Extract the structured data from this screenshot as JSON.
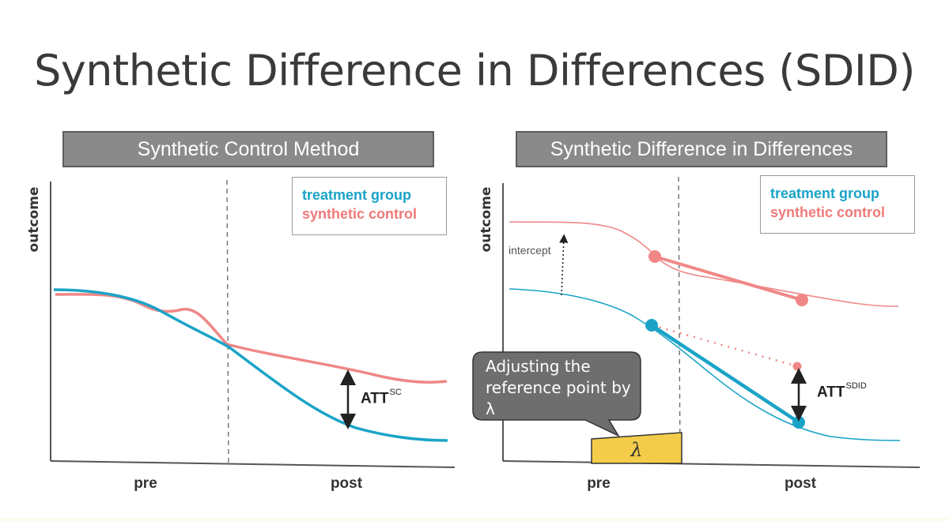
{
  "title": "Synthetic Difference in Differences (SDID)",
  "left_panel": {
    "header": "Synthetic Control Method",
    "ylabel": "outcome",
    "x_pre": "pre",
    "x_post": "post",
    "legend": {
      "treatment": "treatment group",
      "synthetic": "synthetic control"
    },
    "att_label": "ATT",
    "att_sup": "SC"
  },
  "right_panel": {
    "header": "Synthetic Difference in Differences",
    "ylabel": "outcome",
    "x_pre": "pre",
    "x_post": "post",
    "legend": {
      "treatment": "treatment group",
      "synthetic": "synthetic control"
    },
    "intercept_label": "intercept",
    "att_label": "ATT",
    "att_sup": "SDID",
    "callout": "Adjusting the reference point by λ",
    "lambda_symbol": "λ"
  },
  "colors": {
    "treatment": "#1aa3c7",
    "synthetic": "#f08787",
    "header_bg": "#8a8a8a",
    "lambda_box": "#f3cc4a",
    "callout_bg": "#6e6e6e"
  }
}
